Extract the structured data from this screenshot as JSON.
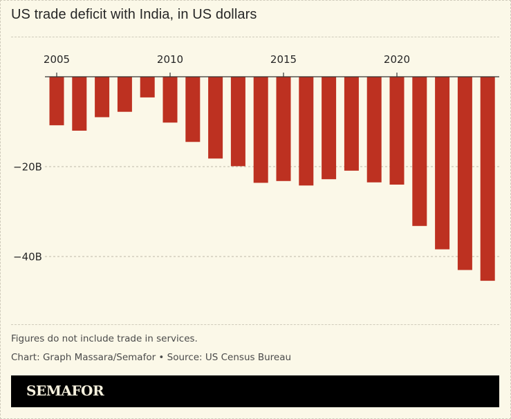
{
  "header": {
    "title": "US trade deficit with India, in US dollars"
  },
  "footer": {
    "note": "Figures do not include trade in services.",
    "credit": "Chart: Graph Massara/Semafor • Source: US Census Bureau",
    "brand": "SEMAFOR"
  },
  "colors": {
    "background": "#fbf8e8",
    "bar": "#bd3121",
    "text": "#262626",
    "brand_bg": "#000000"
  },
  "chart_data": {
    "type": "bar",
    "title": "US trade deficit with India, in US dollars",
    "xlabel": "",
    "ylabel": "",
    "categories": [
      "2005",
      "2006",
      "2007",
      "2008",
      "2009",
      "2010",
      "2011",
      "2012",
      "2013",
      "2014",
      "2015",
      "2016",
      "2017",
      "2018",
      "2019",
      "2020",
      "2021",
      "2022",
      "2023",
      "2024"
    ],
    "values": [
      -10.8,
      -12.0,
      -9.0,
      -7.8,
      -4.6,
      -10.2,
      -14.5,
      -18.2,
      -19.9,
      -23.6,
      -23.2,
      -24.2,
      -22.8,
      -20.9,
      -23.5,
      -24.0,
      -33.2,
      -38.4,
      -43.0,
      -45.4
    ],
    "x_ticks": [
      "2005",
      "2010",
      "2015",
      "2020"
    ],
    "y_ticks": [
      {
        "value": -20,
        "label": "−20B"
      },
      {
        "value": -40,
        "label": "−40B"
      }
    ],
    "ylim": [
      -48,
      0
    ],
    "x_axis_position": "top",
    "grid": "dotted horizontal at y ticks",
    "legend": "none"
  }
}
